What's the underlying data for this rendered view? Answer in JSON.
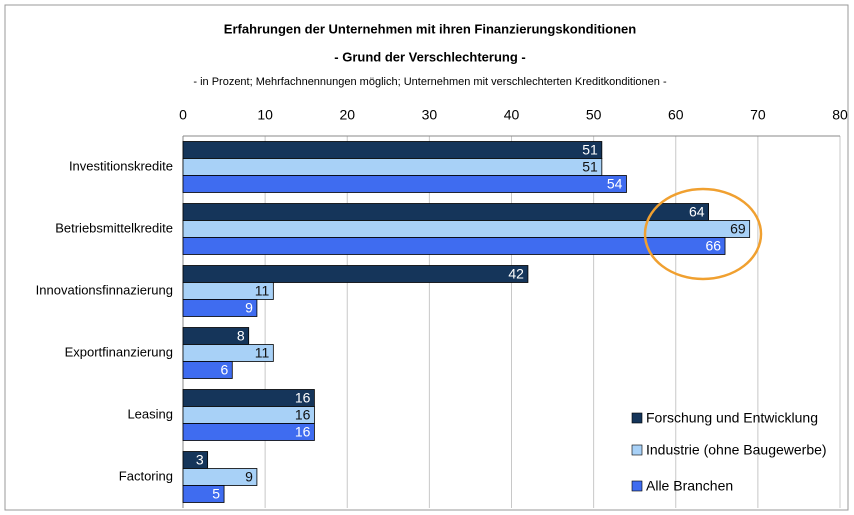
{
  "chart_data": {
    "type": "bar",
    "orientation": "horizontal",
    "title": "Erfahrungen der Unternehmen mit ihren Finanzierungskonditionen",
    "subtitle": "- Grund der Verschlechterung -",
    "note": "- in Prozent; Mehrfachnennungen möglich; Unternehmen mit verschlechterten Kreditkonditionen -",
    "categories": [
      "Investitionskredite",
      "Betriebsmittelkredite",
      "Innovationsfinnazierung",
      "Exportfinanzierung",
      "Leasing",
      "Factoring"
    ],
    "series": [
      {
        "name": "Forschung und Entwicklung",
        "color": "#15355a",
        "values": [
          51,
          64,
          42,
          8,
          16,
          3
        ]
      },
      {
        "name": "Industrie (ohne Baugewerbe)",
        "color": "#a8d1f7",
        "values": [
          51,
          69,
          11,
          11,
          16,
          9
        ]
      },
      {
        "name": "Alle Branchen",
        "color": "#3f6cf0",
        "values": [
          54,
          66,
          9,
          6,
          16,
          5
        ]
      }
    ],
    "xlim": [
      0,
      80
    ],
    "xticks": [
      0,
      10,
      20,
      30,
      40,
      50,
      60,
      70,
      80
    ],
    "grid": true,
    "legend": "lower right"
  }
}
